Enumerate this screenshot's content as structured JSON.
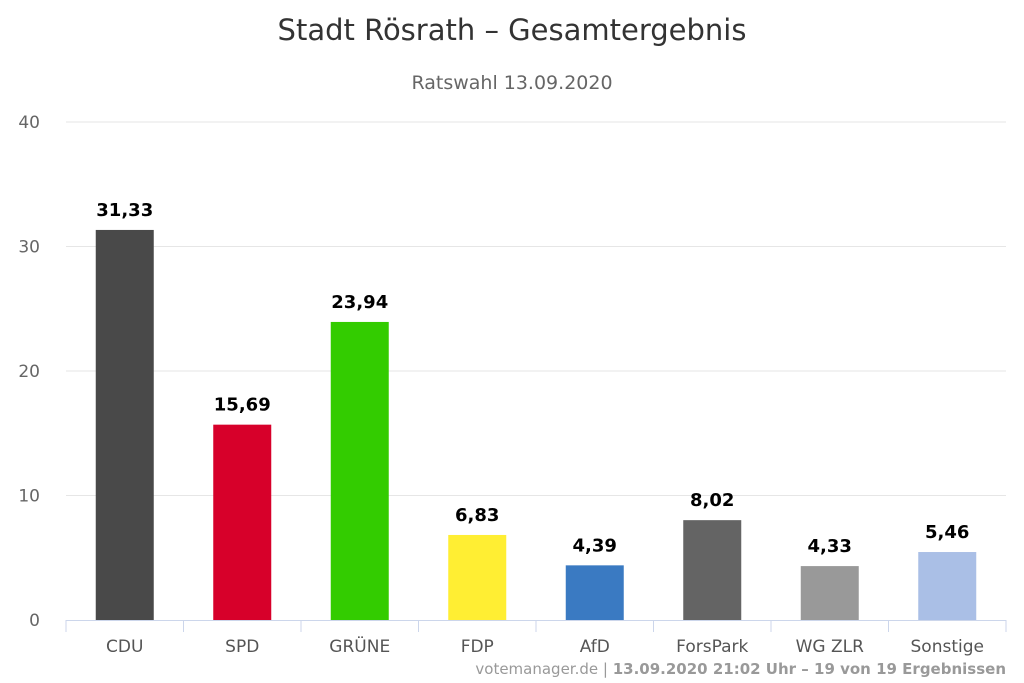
{
  "chart_data": {
    "type": "bar",
    "title": "Stadt Rösrath – Gesamtergebnis",
    "subtitle": "Ratswahl 13.09.2020",
    "categories": [
      "CDU",
      "SPD",
      "GRÜNE",
      "FDP",
      "AfD",
      "ForsPark",
      "WG ZLR",
      "Sonstige"
    ],
    "values": [
      31.33,
      15.69,
      23.94,
      6.83,
      4.39,
      8.02,
      4.33,
      5.46
    ],
    "value_labels": [
      "31,33",
      "15,69",
      "23,94",
      "6,83",
      "4,39",
      "8,02",
      "4,33",
      "5,46"
    ],
    "colors": [
      "#494949",
      "#d7002a",
      "#33cc00",
      "#ffee33",
      "#3a7ac2",
      "#646464",
      "#999999",
      "#aabfe6"
    ],
    "ylim": [
      0,
      40
    ],
    "yticks": [
      0,
      10,
      20,
      30,
      40
    ],
    "grid": true,
    "xlabel": "",
    "ylabel": ""
  },
  "credits": {
    "site": "votemanager.de",
    "separator": " | ",
    "info": "13.09.2020 21:02 Uhr – 19 von 19 Ergebnissen"
  }
}
